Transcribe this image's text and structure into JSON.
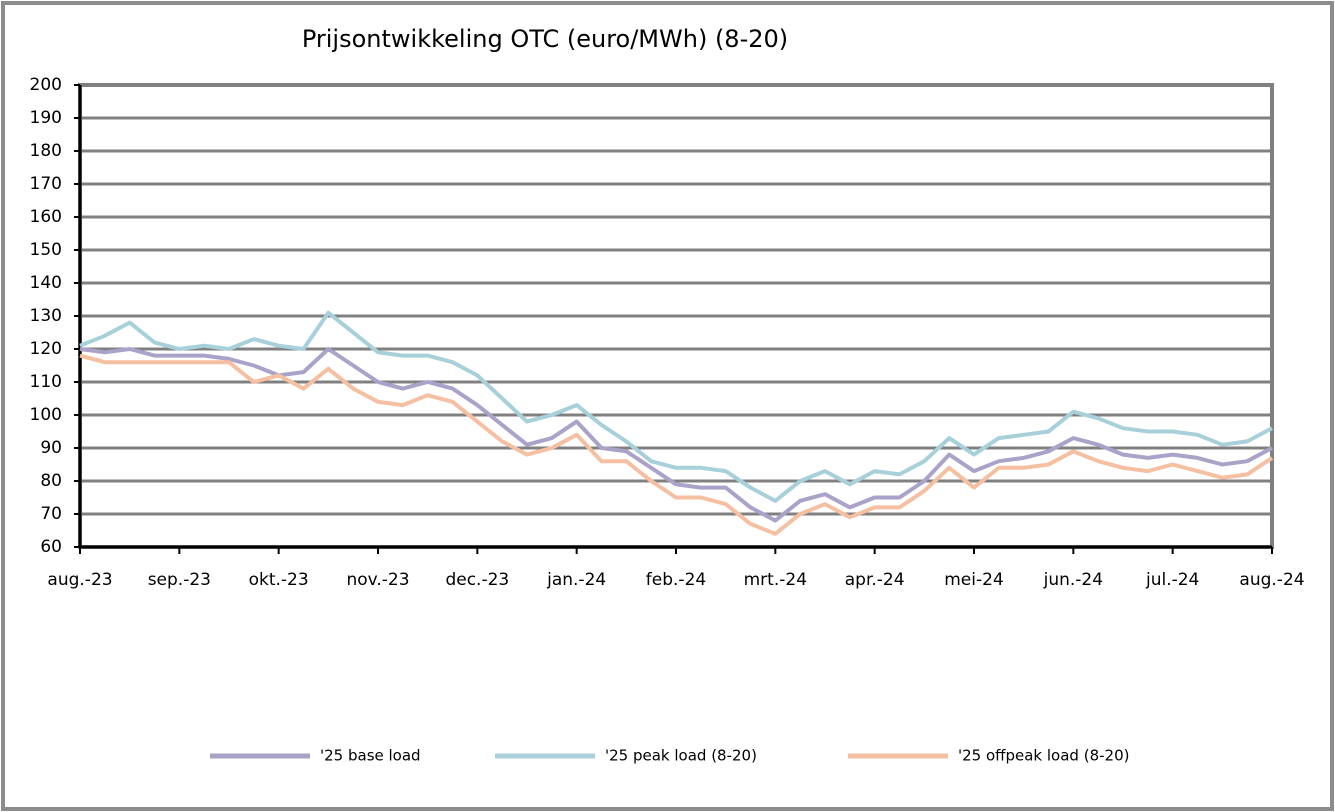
{
  "chart_data": {
    "type": "line",
    "title": "Prijsontwikkeling OTC (euro/MWh) (8-20)",
    "categories": [
      "aug.-23",
      null,
      null,
      null,
      "sep.-23",
      null,
      null,
      null,
      "okt.-23",
      null,
      null,
      null,
      "nov.-23",
      null,
      null,
      null,
      "dec.-23",
      null,
      null,
      null,
      "jan.-24",
      null,
      null,
      null,
      "feb.-24",
      null,
      null,
      null,
      "mrt.-24",
      null,
      null,
      null,
      "apr.-24",
      null,
      null,
      null,
      "mei-24",
      null,
      null,
      null,
      "jun.-24",
      null,
      null,
      null,
      "jul.-24",
      null,
      null,
      null,
      "aug.-24"
    ],
    "series": [
      {
        "name": "'25 base load",
        "color": "#aaa2c8",
        "values": [
          120,
          119,
          120,
          118,
          118,
          118,
          117,
          115,
          112,
          113,
          120,
          115,
          110,
          108,
          110,
          108,
          103,
          97,
          91,
          93,
          98,
          90,
          89,
          84,
          79,
          78,
          78,
          72,
          68,
          74,
          76,
          72,
          75,
          75,
          80,
          88,
          83,
          86,
          87,
          89,
          93,
          91,
          88,
          87,
          88,
          87,
          85,
          86,
          90
        ]
      },
      {
        "name": "'25  peak load (8-20)",
        "color": "#a8d0da",
        "values": [
          121,
          124,
          128,
          122,
          120,
          121,
          120,
          123,
          121,
          120,
          131,
          125,
          119,
          118,
          118,
          116,
          112,
          105,
          98,
          100,
          103,
          97,
          92,
          86,
          84,
          84,
          83,
          78,
          74,
          80,
          83,
          79,
          83,
          82,
          86,
          93,
          88,
          93,
          94,
          95,
          101,
          99,
          96,
          95,
          95,
          94,
          91,
          92,
          96
        ]
      },
      {
        "name": "'25 offpeak load (8-20)",
        "color": "#f5bfa2",
        "values": [
          118,
          116,
          116,
          116,
          116,
          116,
          116,
          110,
          112,
          108,
          114,
          108,
          104,
          103,
          106,
          104,
          98,
          92,
          88,
          90,
          94,
          86,
          86,
          80,
          75,
          75,
          73,
          67,
          64,
          70,
          73,
          69,
          72,
          72,
          77,
          84,
          78,
          84,
          84,
          85,
          89,
          86,
          84,
          83,
          85,
          83,
          81,
          82,
          87
        ]
      }
    ],
    "ylim": [
      60,
      200
    ],
    "yticks": [
      60,
      70,
      80,
      90,
      100,
      110,
      120,
      130,
      140,
      150,
      160,
      170,
      180,
      190,
      200
    ],
    "grid": true,
    "legend": "bottom"
  }
}
